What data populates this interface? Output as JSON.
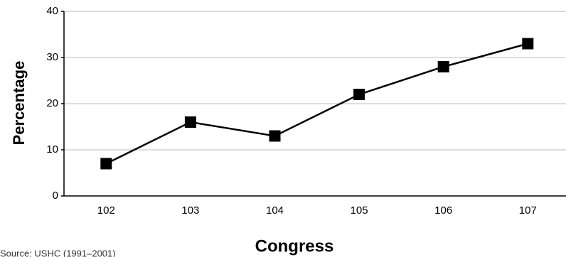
{
  "chart_data": {
    "type": "line",
    "x_label": "Congress",
    "y_label": "Percentage",
    "source": "Source: USHC (1991–2001)",
    "categories": [
      "102",
      "103",
      "104",
      "105",
      "106",
      "107"
    ],
    "series": [
      {
        "name": "Percentage",
        "color": "#000000",
        "values": [
          7,
          16,
          13,
          22,
          28,
          33
        ]
      }
    ],
    "ylim": [
      0,
      40
    ],
    "yticks": [
      0,
      10,
      20,
      30,
      40
    ],
    "grid": true
  }
}
